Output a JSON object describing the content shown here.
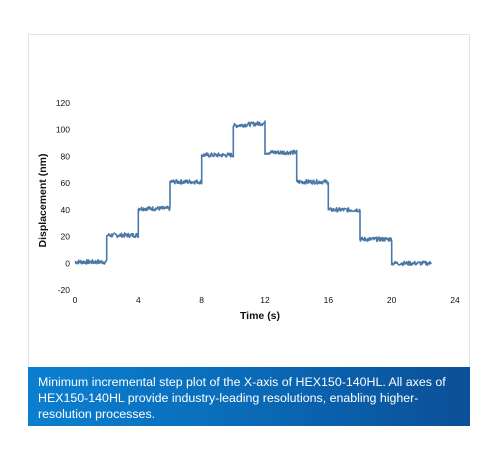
{
  "caption": "Minimum incremental step plot of the X-axis of HEX150-140HL. All axes of HEX150-140HL provide industry-leading resolutions, enabling higher-resolution processes.",
  "colors": {
    "line": "#4a78a8",
    "caption_bg_start": "#0b7fd0",
    "caption_bg_end": "#0b4f97",
    "frame": "#e3e3e3"
  },
  "chart_data": {
    "type": "line",
    "xlabel": "Time (s)",
    "ylabel": "Displacement (nm)",
    "xlim": [
      0,
      24
    ],
    "ylim": [
      -20,
      120
    ],
    "x_ticks": [
      "0",
      "4",
      "8",
      "12",
      "16",
      "20",
      "24"
    ],
    "y_ticks": [
      "120",
      "100",
      "80",
      "60",
      "40",
      "20",
      "0",
      "-20"
    ],
    "grid": false,
    "series": [
      {
        "step_levels": [
          {
            "x_start": 0,
            "x_end": 2.0,
            "y": 1
          },
          {
            "x_start": 2.0,
            "x_end": 4.0,
            "y": 21
          },
          {
            "x_start": 4.0,
            "x_end": 6.0,
            "y": 41
          },
          {
            "x_start": 6.0,
            "x_end": 8.0,
            "y": 61
          },
          {
            "x_start": 8.0,
            "x_end": 10.0,
            "y": 81
          },
          {
            "x_start": 10.0,
            "x_end": 12.0,
            "y": 103
          },
          {
            "x_start": 12.0,
            "x_end": 14.0,
            "y": 83
          },
          {
            "x_start": 14.0,
            "x_end": 16.0,
            "y": 61
          },
          {
            "x_start": 16.0,
            "x_end": 18.0,
            "y": 40
          },
          {
            "x_start": 18.0,
            "x_end": 20.0,
            "y": 18
          },
          {
            "x_start": 20.0,
            "x_end": 22.5,
            "y": 0
          }
        ]
      }
    ]
  }
}
